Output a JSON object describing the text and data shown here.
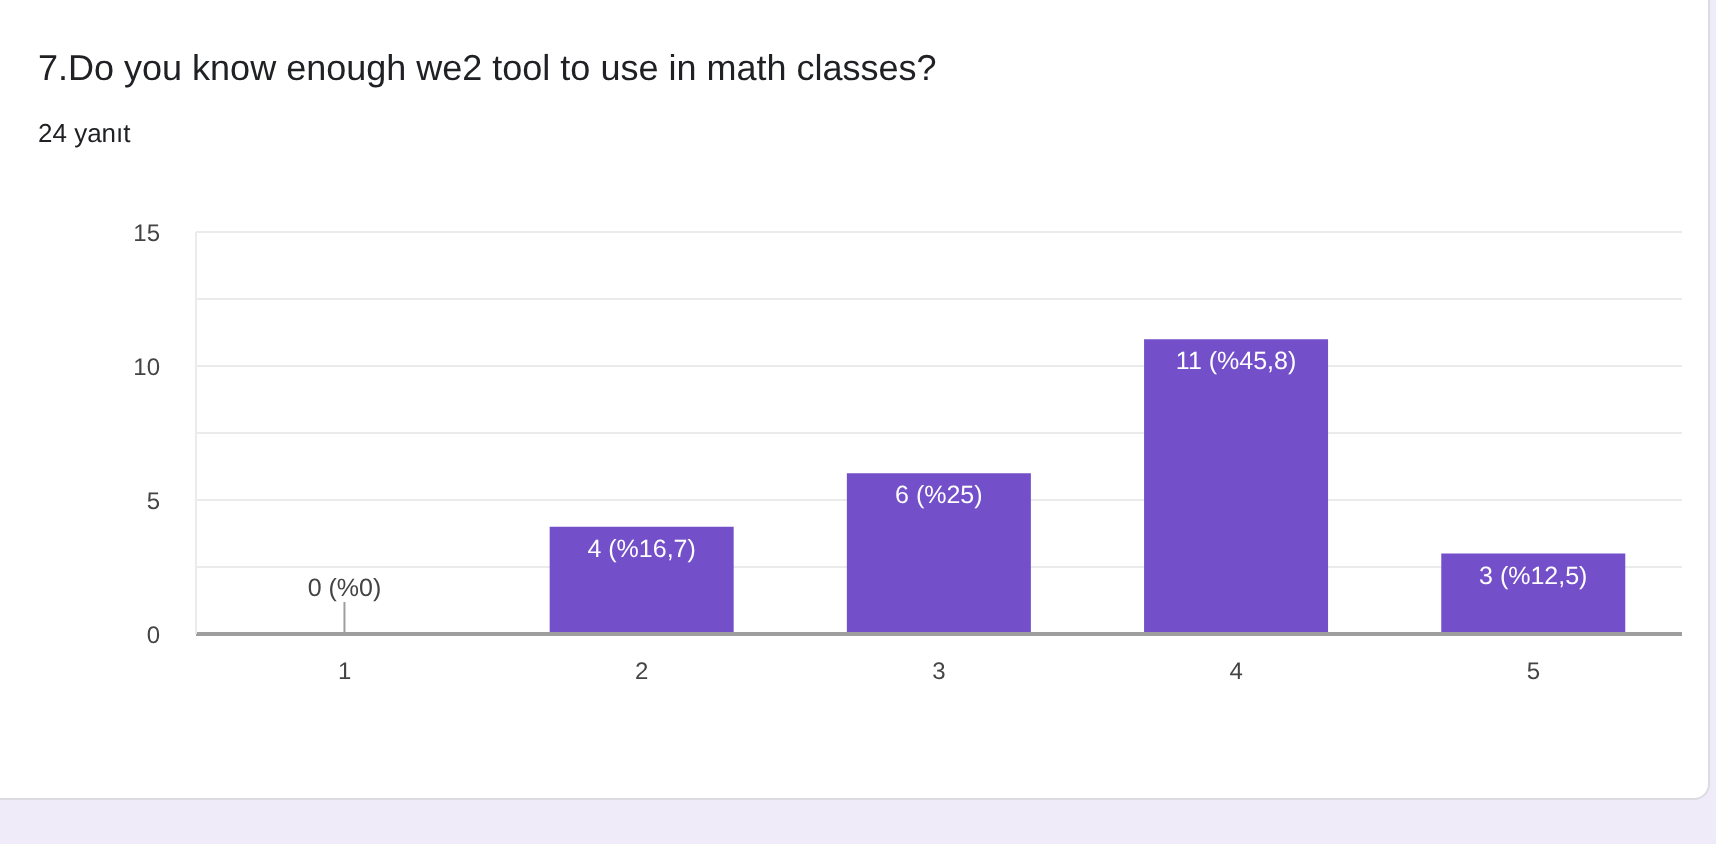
{
  "chart_data": {
    "type": "bar",
    "title": "7.Do you know enough we2 tool to use in math classes?",
    "subtitle": "24 yanıt",
    "categories": [
      "1",
      "2",
      "3",
      "4",
      "5"
    ],
    "values": [
      0,
      4,
      6,
      11,
      3
    ],
    "color": "#734fc9",
    "value_labels": [
      "0 (%0)",
      "4 (%16,7)",
      "6 (%25)",
      "11 (%45,8)",
      "3 (%12,5)"
    ],
    "ylim": [
      0,
      15
    ],
    "yticks": [
      0,
      {
        "value": 2.5,
        "label": null
      },
      5,
      {
        "value": 7.5,
        "label": null
      },
      10,
      {
        "value": 12.5,
        "label": null
      },
      15
    ],
    "grid": "y"
  }
}
